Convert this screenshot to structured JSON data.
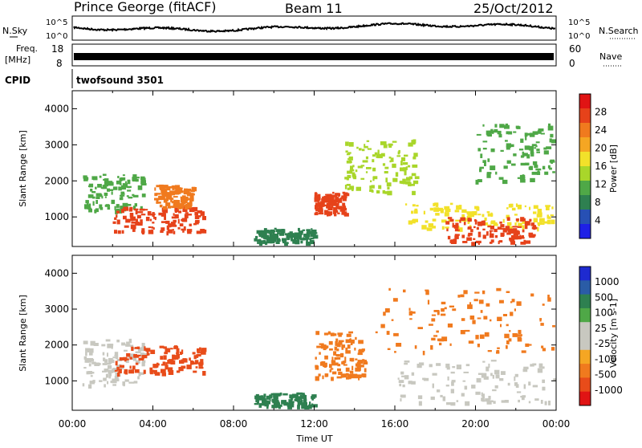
{
  "header": {
    "station": "Prince George (fitACF)",
    "beam": "Beam 11",
    "date": "25/Oct/2012"
  },
  "noise_panel": {
    "left_label": "N.Sky",
    "left_ticks": [
      "10^5",
      "10^0"
    ],
    "right_ticks": [
      "10^5",
      "10^0"
    ],
    "right_label": "N.Search"
  },
  "freq_panel": {
    "label_line1": "Freq.",
    "label_line2": "[MHz]",
    "left_ticks": [
      "18",
      "8"
    ],
    "right_ticks": [
      "60",
      "0"
    ],
    "right_label": "Nave"
  },
  "cpid_panel": {
    "label": "CPID",
    "value": "twofsound 3501"
  },
  "colors": {
    "frame": "#000000",
    "power_scale": [
      "#1e20e6",
      "#2750b4",
      "#2e8050",
      "#4fa847",
      "#a9d62a",
      "#f2e12a",
      "#f5a623",
      "#f07a1e",
      "#e6421a",
      "#e01414"
    ],
    "velocity_scale": [
      "#e01414",
      "#e84c1a",
      "#f07a1e",
      "#f5a623",
      "#c8c8c0",
      "#c8c8c0",
      "#4fa847",
      "#2e8050",
      "#2a5ca6",
      "#1e2ad0"
    ]
  },
  "chart_data": [
    {
      "type": "heatmap",
      "panel": "power",
      "ylabel": "Slant Range [km]",
      "ylim": [
        180,
        4500
      ],
      "y_ticks": [
        1000,
        2000,
        3000,
        4000
      ],
      "x_ticks": [
        "00:00",
        "04:00",
        "08:00",
        "12:00",
        "16:00",
        "20:00",
        "00:00"
      ],
      "xlim_hours": [
        0,
        24
      ],
      "colorbar_label": "Power [dB]",
      "colorbar_ticks": [
        "4",
        "8",
        "12",
        "16",
        "20",
        "24",
        "28"
      ],
      "regions": [
        {
          "t": [
            0.5,
            3.5
          ],
          "r": [
            1200,
            2200
          ],
          "db": 11
        },
        {
          "t": [
            2.0,
            6.5
          ],
          "r": [
            600,
            1300
          ],
          "db": 27
        },
        {
          "t": [
            4.0,
            6.0
          ],
          "r": [
            1300,
            1900
          ],
          "db": 23
        },
        {
          "t": [
            9.0,
            12.0
          ],
          "r": [
            300,
            700
          ],
          "db": 8
        },
        {
          "t": [
            12.0,
            13.5
          ],
          "r": [
            1100,
            1700
          ],
          "db": 26
        },
        {
          "t": [
            13.5,
            17.0
          ],
          "r": [
            1700,
            3200
          ],
          "db": 12
        },
        {
          "t": [
            16.5,
            24.0
          ],
          "r": [
            700,
            1400
          ],
          "db": 15
        },
        {
          "t": [
            18.5,
            23.0
          ],
          "r": [
            300,
            1000
          ],
          "db": 28
        },
        {
          "t": [
            20.0,
            24.0
          ],
          "r": [
            2000,
            3600
          ],
          "db": 9
        }
      ]
    },
    {
      "type": "heatmap",
      "panel": "velocity",
      "ylabel": "Slant Range [km]",
      "ylim": [
        180,
        4500
      ],
      "y_ticks": [
        1000,
        2000,
        3000,
        4000
      ],
      "x_ticks": [
        "00:00",
        "04:00",
        "08:00",
        "12:00",
        "16:00",
        "20:00",
        "00:00"
      ],
      "xlim_hours": [
        0,
        24
      ],
      "xlabel": "Time UT",
      "colorbar_label": "Velocity [m s-1]",
      "colorbar_ticks": [
        "1000",
        "500",
        "100",
        "25",
        "-25",
        "-100",
        "-500",
        "-1000"
      ],
      "regions": [
        {
          "t": [
            0.5,
            3.5
          ],
          "r": [
            900,
            2200
          ],
          "v": 0
        },
        {
          "t": [
            2.0,
            6.5
          ],
          "r": [
            1200,
            2000
          ],
          "v": -250
        },
        {
          "t": [
            9.0,
            12.0
          ],
          "r": [
            300,
            700
          ],
          "v": 150
        },
        {
          "t": [
            12.0,
            14.5
          ],
          "r": [
            1100,
            2400
          ],
          "v": -200
        },
        {
          "t": [
            15.0,
            24.0
          ],
          "r": [
            1800,
            3600
          ],
          "v": -150
        },
        {
          "t": [
            16.0,
            24.0
          ],
          "r": [
            400,
            1600
          ],
          "v": 0
        }
      ]
    }
  ]
}
